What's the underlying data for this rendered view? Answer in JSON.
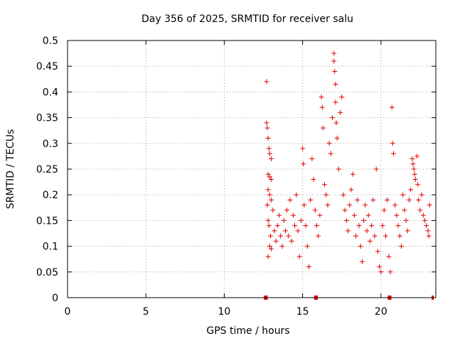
{
  "chart_data": {
    "type": "scatter",
    "title": "Day 356 of 2025, SRMTID for receiver salu",
    "xlabel": "GPS time / hours",
    "ylabel": "SRMTID / TECUs",
    "xlim": [
      0,
      23.5
    ],
    "ylim": [
      0,
      0.5
    ],
    "x_ticks": [
      0,
      5,
      10,
      15,
      20
    ],
    "x_tick_labels": [
      "0",
      "5",
      "10",
      "15",
      "20"
    ],
    "y_ticks": [
      0,
      0.05,
      0.1,
      0.15,
      0.2,
      0.25,
      0.3,
      0.35,
      0.4,
      0.45,
      0.5
    ],
    "y_tick_labels": [
      "0",
      "0.05",
      "0.1",
      "0.15",
      "0.2",
      "0.25",
      "0.3",
      "0.35",
      "0.4",
      "0.45",
      "0.5"
    ],
    "grid": true,
    "marker": "+",
    "marker_color": "#e00000",
    "baseline_marks_x": [
      12.6,
      12.7,
      15.8,
      15.9,
      20.5,
      20.6,
      23.3
    ],
    "series": [
      {
        "name": "SRMTID",
        "points": [
          [
            12.7,
            0.42
          ],
          [
            12.7,
            0.34
          ],
          [
            12.75,
            0.33
          ],
          [
            12.8,
            0.31
          ],
          [
            12.85,
            0.29
          ],
          [
            12.9,
            0.28
          ],
          [
            13.0,
            0.27
          ],
          [
            12.8,
            0.24
          ],
          [
            12.9,
            0.235
          ],
          [
            13.0,
            0.23
          ],
          [
            12.8,
            0.21
          ],
          [
            12.9,
            0.2
          ],
          [
            13.0,
            0.19
          ],
          [
            12.75,
            0.18
          ],
          [
            12.8,
            0.15
          ],
          [
            12.85,
            0.14
          ],
          [
            12.95,
            0.12
          ],
          [
            12.9,
            0.1
          ],
          [
            12.8,
            0.08
          ],
          [
            13.0,
            0.095
          ],
          [
            13.1,
            0.17
          ],
          [
            13.2,
            0.13
          ],
          [
            13.3,
            0.11
          ],
          [
            13.4,
            0.14
          ],
          [
            13.5,
            0.16
          ],
          [
            13.6,
            0.12
          ],
          [
            13.7,
            0.1
          ],
          [
            13.8,
            0.15
          ],
          [
            13.9,
            0.13
          ],
          [
            14.0,
            0.17
          ],
          [
            14.1,
            0.12
          ],
          [
            14.2,
            0.19
          ],
          [
            14.3,
            0.11
          ],
          [
            14.4,
            0.16
          ],
          [
            14.5,
            0.14
          ],
          [
            14.6,
            0.2
          ],
          [
            14.7,
            0.13
          ],
          [
            14.8,
            0.08
          ],
          [
            14.9,
            0.15
          ],
          [
            15.0,
            0.29
          ],
          [
            15.05,
            0.26
          ],
          [
            15.1,
            0.18
          ],
          [
            15.2,
            0.14
          ],
          [
            15.3,
            0.1
          ],
          [
            15.4,
            0.06
          ],
          [
            15.5,
            0.19
          ],
          [
            15.6,
            0.27
          ],
          [
            15.7,
            0.23
          ],
          [
            15.8,
            0.17
          ],
          [
            15.9,
            0.14
          ],
          [
            16.0,
            0.12
          ],
          [
            16.1,
            0.16
          ],
          [
            16.2,
            0.39
          ],
          [
            16.25,
            0.37
          ],
          [
            16.3,
            0.33
          ],
          [
            16.4,
            0.22
          ],
          [
            16.5,
            0.2
          ],
          [
            16.6,
            0.18
          ],
          [
            16.7,
            0.3
          ],
          [
            16.8,
            0.28
          ],
          [
            16.9,
            0.35
          ],
          [
            17.0,
            0.475
          ],
          [
            17.0,
            0.46
          ],
          [
            17.05,
            0.44
          ],
          [
            17.1,
            0.415
          ],
          [
            17.1,
            0.38
          ],
          [
            17.15,
            0.34
          ],
          [
            17.2,
            0.31
          ],
          [
            17.3,
            0.25
          ],
          [
            17.4,
            0.36
          ],
          [
            17.5,
            0.39
          ],
          [
            17.6,
            0.2
          ],
          [
            17.7,
            0.17
          ],
          [
            17.8,
            0.15
          ],
          [
            17.9,
            0.13
          ],
          [
            18.0,
            0.18
          ],
          [
            18.1,
            0.21
          ],
          [
            18.2,
            0.24
          ],
          [
            18.3,
            0.16
          ],
          [
            18.4,
            0.12
          ],
          [
            18.5,
            0.19
          ],
          [
            18.6,
            0.14
          ],
          [
            18.7,
            0.1
          ],
          [
            18.8,
            0.07
          ],
          [
            18.9,
            0.15
          ],
          [
            19.0,
            0.18
          ],
          [
            19.1,
            0.13
          ],
          [
            19.2,
            0.16
          ],
          [
            19.3,
            0.11
          ],
          [
            19.4,
            0.14
          ],
          [
            19.5,
            0.19
          ],
          [
            19.6,
            0.12
          ],
          [
            19.7,
            0.25
          ],
          [
            19.8,
            0.09
          ],
          [
            19.9,
            0.06
          ],
          [
            20.0,
            0.05
          ],
          [
            20.1,
            0.14
          ],
          [
            20.2,
            0.17
          ],
          [
            20.3,
            0.12
          ],
          [
            20.4,
            0.19
          ],
          [
            20.5,
            0.08
          ],
          [
            20.6,
            0.05
          ],
          [
            20.7,
            0.37
          ],
          [
            20.75,
            0.3
          ],
          [
            20.8,
            0.28
          ],
          [
            20.9,
            0.18
          ],
          [
            21.0,
            0.16
          ],
          [
            21.1,
            0.14
          ],
          [
            21.2,
            0.12
          ],
          [
            21.3,
            0.1
          ],
          [
            21.4,
            0.2
          ],
          [
            21.5,
            0.17
          ],
          [
            21.6,
            0.15
          ],
          [
            21.7,
            0.13
          ],
          [
            21.8,
            0.19
          ],
          [
            21.9,
            0.21
          ],
          [
            22.0,
            0.27
          ],
          [
            22.05,
            0.26
          ],
          [
            22.1,
            0.25
          ],
          [
            22.15,
            0.24
          ],
          [
            22.2,
            0.23
          ],
          [
            22.3,
            0.275
          ],
          [
            22.35,
            0.22
          ],
          [
            22.4,
            0.19
          ],
          [
            22.5,
            0.17
          ],
          [
            22.6,
            0.2
          ],
          [
            22.7,
            0.16
          ],
          [
            22.8,
            0.15
          ],
          [
            22.9,
            0.14
          ],
          [
            23.0,
            0.13
          ],
          [
            23.05,
            0.12
          ],
          [
            23.1,
            0.18
          ]
        ]
      }
    ]
  }
}
